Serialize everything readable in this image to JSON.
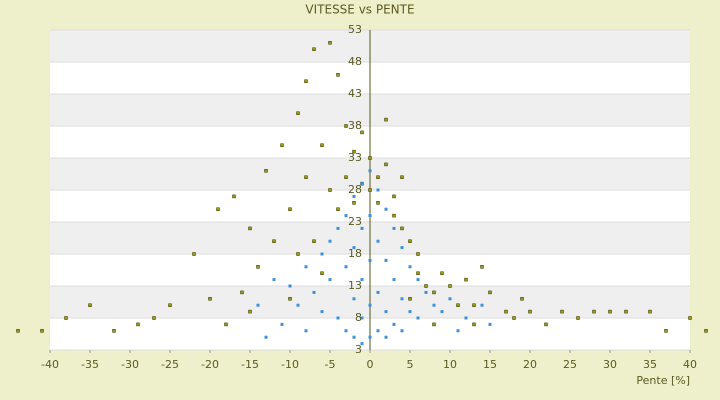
{
  "chart_data": {
    "type": "scatter",
    "title": "VITESSE vs PENTE",
    "x_label": "Pente [%]",
    "xlim": [
      -40,
      40
    ],
    "xticks": [
      -40,
      -35,
      -30,
      -25,
      -20,
      -15,
      -10,
      -5,
      0,
      5,
      10,
      15,
      20,
      25,
      30,
      35,
      40
    ],
    "ylim": [
      3,
      53
    ],
    "yticks": [
      3,
      8,
      13,
      18,
      23,
      28,
      33,
      38,
      43,
      48,
      53
    ],
    "grid": true,
    "series": [
      {
        "color": "#9a9a10",
        "x": [
          -44,
          -41,
          -38,
          -35,
          -32,
          -29,
          -25,
          -22,
          -20,
          -19,
          -17,
          -16,
          -15,
          -14,
          -13,
          -12,
          -11,
          -10,
          -10,
          -9,
          -8,
          -8,
          -7,
          -7,
          -6,
          -5,
          -5,
          -4,
          -4,
          -3,
          -3,
          -2,
          -2,
          -1,
          -1,
          0,
          0,
          1,
          1,
          2,
          2,
          3,
          3,
          4,
          4,
          5,
          6,
          6,
          7,
          8,
          9,
          10,
          11,
          12,
          13,
          14,
          15,
          17,
          19,
          20,
          22,
          24,
          26,
          28,
          30,
          32,
          35,
          37,
          40,
          42,
          -6,
          -9,
          -15,
          -18,
          -27,
          5,
          8,
          13,
          18
        ],
        "values": [
          6,
          6,
          8,
          10,
          6,
          7,
          10,
          18,
          11,
          25,
          27,
          12,
          22,
          16,
          31,
          20,
          35,
          25,
          11,
          40,
          30,
          45,
          50,
          20,
          35,
          51,
          28,
          46,
          25,
          38,
          30,
          34,
          26,
          37,
          29,
          33,
          28,
          30,
          26,
          39,
          32,
          27,
          24,
          30,
          22,
          20,
          18,
          15,
          13,
          12,
          15,
          13,
          10,
          14,
          10,
          16,
          12,
          9,
          11,
          9,
          7,
          9,
          8,
          9,
          9,
          9,
          9,
          6,
          8,
          6,
          15,
          18,
          9,
          7,
          8,
          11,
          7,
          7,
          8
        ]
      },
      {
        "color": "#3d8fd8",
        "x": [
          -12,
          -10,
          -9,
          -8,
          -7,
          -6,
          -6,
          -5,
          -5,
          -4,
          -4,
          -3,
          -3,
          -3,
          -2,
          -2,
          -2,
          -2,
          -1,
          -1,
          -1,
          -1,
          -1,
          0,
          0,
          0,
          0,
          0,
          1,
          1,
          1,
          1,
          2,
          2,
          2,
          2,
          3,
          3,
          3,
          4,
          4,
          4,
          5,
          5,
          6,
          6,
          7,
          8,
          9,
          10,
          12,
          14,
          -14,
          -11,
          -8,
          -13,
          11,
          15
        ],
        "values": [
          14,
          13,
          10,
          16,
          12,
          18,
          9,
          20,
          14,
          22,
          8,
          24,
          16,
          6,
          27,
          19,
          11,
          5,
          29,
          22,
          14,
          8,
          4,
          31,
          24,
          17,
          10,
          5,
          28,
          20,
          12,
          6,
          25,
          17,
          9,
          5,
          22,
          14,
          7,
          19,
          11,
          6,
          16,
          9,
          14,
          8,
          12,
          10,
          9,
          11,
          8,
          10,
          10,
          7,
          6,
          5,
          6,
          7
        ]
      }
    ]
  }
}
